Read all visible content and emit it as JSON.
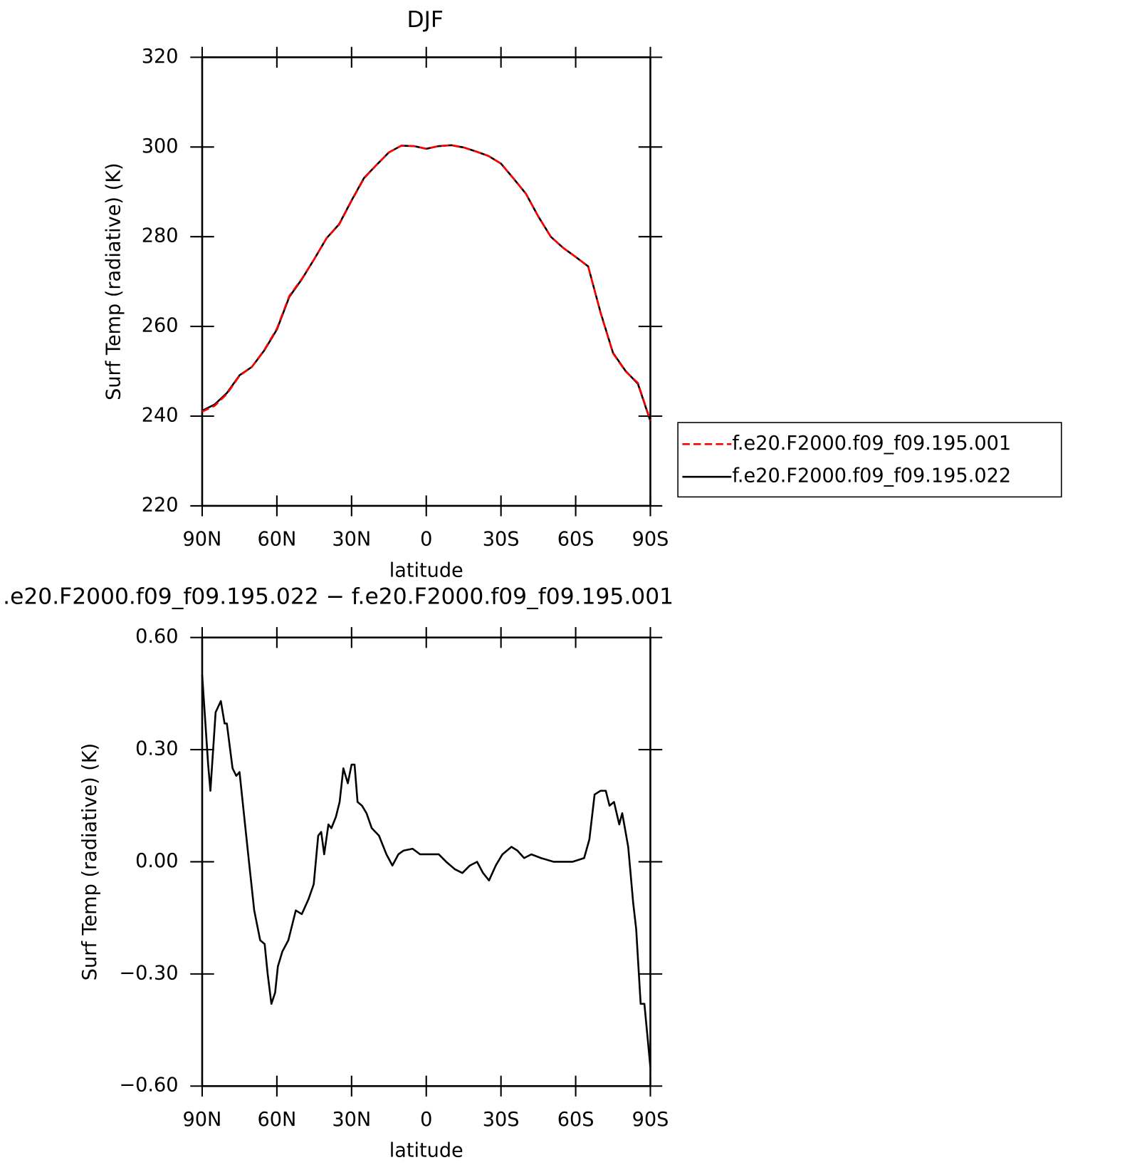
{
  "chart_data": [
    {
      "type": "line",
      "title": "DJF",
      "xlabel": "latitude",
      "ylabel": "Surf Temp (radiative) (K)",
      "x": [
        90,
        85,
        80,
        75,
        70,
        65,
        60,
        55,
        50,
        45,
        40,
        35,
        30,
        25,
        20,
        15,
        10,
        5,
        0,
        -5,
        -10,
        -15,
        -20,
        -25,
        -30,
        -35,
        -40,
        -45,
        -50,
        -55,
        -60,
        -65,
        -70,
        -75,
        -80,
        -85,
        -90
      ],
      "series": [
        {
          "name": "f.e20.F2000.f09_f09.195.001",
          "color": "#ff0000",
          "dash": true,
          "values": [
            241,
            242.3,
            245,
            249,
            251,
            254.8,
            259.5,
            266.8,
            270.6,
            275,
            279.7,
            282.7,
            288,
            293,
            296,
            298.8,
            300.3,
            300.2,
            299.6,
            300.2,
            300.4,
            299.9,
            299,
            298,
            296.3,
            293,
            289.6,
            284.5,
            280,
            277.5,
            275.5,
            273.4,
            263,
            254,
            250,
            247.4,
            239
          ]
        },
        {
          "name": "f.e20.F2000.f09_f09.195.022",
          "color": "#000000",
          "dash": false,
          "values": [
            241.2,
            242.6,
            245.2,
            249.1,
            251,
            254.7,
            259.3,
            266.6,
            270.5,
            275,
            279.7,
            282.8,
            288.1,
            293.1,
            296,
            298.8,
            300.3,
            300.2,
            299.6,
            300.2,
            300.4,
            299.9,
            299,
            298,
            296.3,
            293,
            289.6,
            284.5,
            280,
            277.5,
            275.5,
            273.4,
            263.1,
            254.1,
            250.1,
            247.2,
            238.9
          ]
        }
      ],
      "xlim": [
        90,
        -90
      ],
      "xticks": [
        {
          "value": 90,
          "label": "90N"
        },
        {
          "value": 60,
          "label": "60N"
        },
        {
          "value": 30,
          "label": "30N"
        },
        0,
        {
          "value": -30,
          "label": "30S"
        },
        {
          "value": -60,
          "label": "60S"
        },
        {
          "value": -90,
          "label": "90S"
        }
      ],
      "ylim": [
        220,
        320
      ],
      "yticks": [
        220,
        240,
        260,
        280,
        300,
        320
      ],
      "legend": "right"
    },
    {
      "type": "line",
      "title": ".e20.F2000.f09_f09.195.022 − f.e20.F2000.f09_f09.195.001",
      "xlabel": "latitude",
      "ylabel": "Surf Temp (radiative) (K)",
      "x": [
        90,
        87.6,
        86.7,
        84.6,
        82.5,
        81,
        80.1,
        77.8,
        76.3,
        75,
        73.9,
        71.2,
        69.1,
        66.7,
        64.9,
        63.7,
        62.2,
        60.7,
        59.6,
        57.8,
        55.4,
        52.4,
        50,
        47.3,
        45.2,
        43.4,
        42.2,
        41,
        39.3,
        38.1,
        36.3,
        34.8,
        33.3,
        31.5,
        30,
        28.8,
        27.6,
        25.8,
        24,
        21.9,
        19,
        16,
        13.6,
        11.2,
        9.1,
        5.5,
        2.5,
        -1.3,
        -5,
        -8,
        -11.5,
        -14.5,
        -17.5,
        -20.4,
        -22.8,
        -25.2,
        -27.9,
        -30.6,
        -34.2,
        -36.6,
        -39.3,
        -42.2,
        -46.1,
        -51.2,
        -58.7,
        -63.4,
        -65.5,
        -67.6,
        -70,
        -72.1,
        -73.6,
        -75.4,
        -77.5,
        -78.7,
        -81.1,
        -83.1,
        -84.3,
        -86.1,
        -87.6,
        -90
      ],
      "series": [
        {
          "name": "difference",
          "color": "#000000",
          "dash": false,
          "values": [
            0.5,
            0.26,
            0.19,
            0.4,
            0.43,
            0.37,
            0.37,
            0.25,
            0.23,
            0.24,
            0.17,
            0,
            -0.13,
            -0.21,
            -0.22,
            -0.3,
            -0.38,
            -0.35,
            -0.28,
            -0.24,
            -0.21,
            -0.13,
            -0.14,
            -0.1,
            -0.06,
            0.07,
            0.08,
            0.02,
            0.1,
            0.09,
            0.12,
            0.16,
            0.25,
            0.21,
            0.26,
            0.26,
            0.16,
            0.15,
            0.13,
            0.09,
            0.07,
            0.02,
            -0.01,
            0.02,
            0.03,
            0.035,
            0.02,
            0.02,
            0.02,
            0,
            -0.02,
            -0.03,
            -0.01,
            0,
            -0.03,
            -0.05,
            -0.01,
            0.02,
            0.04,
            0.03,
            0.01,
            0.02,
            0.01,
            0,
            0,
            0.01,
            0.06,
            0.18,
            0.19,
            0.19,
            0.15,
            0.16,
            0.1,
            0.13,
            0.04,
            -0.11,
            -0.18,
            -0.38,
            -0.38,
            -0.55
          ]
        }
      ],
      "xlim": [
        90,
        -90
      ],
      "xticks": [
        {
          "value": 90,
          "label": "90N"
        },
        {
          "value": 60,
          "label": "60N"
        },
        {
          "value": 30,
          "label": "30N"
        },
        0,
        {
          "value": -30,
          "label": "30S"
        },
        {
          "value": -60,
          "label": "60S"
        },
        {
          "value": -90,
          "label": "90S"
        }
      ],
      "ylim": [
        -0.6,
        0.6
      ],
      "yticks": [
        {
          "value": -0.6,
          "label": "−0.60"
        },
        {
          "value": -0.3,
          "label": "−0.30"
        },
        {
          "value": 0,
          "label": "0.00"
        },
        {
          "value": 0.3,
          "label": "0.30"
        },
        {
          "value": 0.6,
          "label": "0.60"
        }
      ]
    }
  ]
}
